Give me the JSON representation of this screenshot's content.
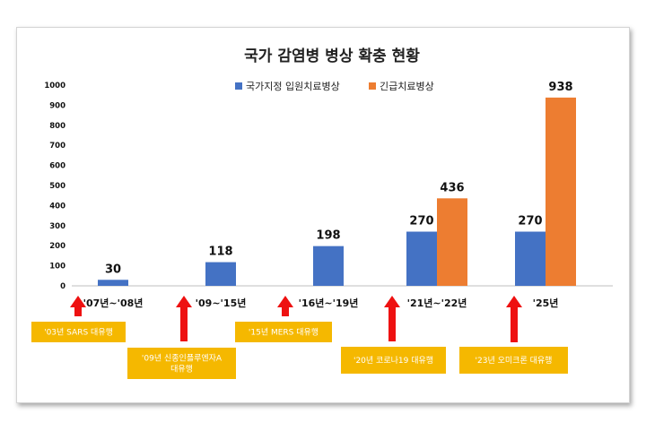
{
  "chart_data": {
    "type": "bar",
    "title": "국가 감염병 병상 확충 현황",
    "categories": [
      "'07년~'08년",
      "'09~'15년",
      "'16년~'19년",
      "'21년~'22년",
      "'25년"
    ],
    "series": [
      {
        "name": "국가지정 입원치료병상",
        "values": [
          30,
          118,
          198,
          270,
          270
        ],
        "color": "#4472C4"
      },
      {
        "name": "긴급치료병상",
        "values": [
          null,
          null,
          null,
          436,
          938
        ],
        "color": "#ED7D31"
      }
    ],
    "ylim": [
      0,
      1000
    ],
    "yticks": [
      0,
      100,
      200,
      300,
      400,
      500,
      600,
      700,
      800,
      900,
      1000
    ],
    "grid": false,
    "legend_position": "top"
  },
  "annotations": [
    {
      "lines": [
        "'03년 SARS 대유행"
      ]
    },
    {
      "lines": [
        "'09년 신종인플루엔자A",
        "대유행"
      ]
    },
    {
      "lines": [
        "'15년 MERS 대유행"
      ]
    },
    {
      "lines": [
        "'20년 코로나19 대유행"
      ]
    },
    {
      "lines": [
        "'23년 오미크론 대유행"
      ]
    }
  ],
  "colors": {
    "annotation_box": "#F5B800",
    "arrow": "#EE1111"
  }
}
